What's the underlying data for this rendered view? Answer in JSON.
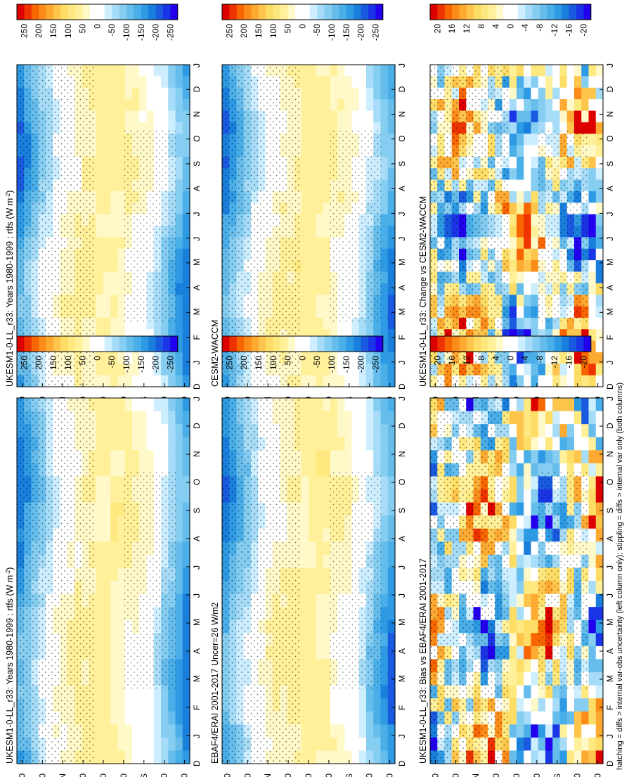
{
  "figure": {
    "footnote": "hatching = diffs > internal var-obs uncertainty (left column only); stippling = diffs > internal var only (both columns)"
  },
  "chart_data": [
    {
      "type": "heatmap",
      "title": "UKESM1-0-LL_r33: Years 1980-1999 : rtfs (W m",
      "title_sup": "-2",
      "title_suffix": ")",
      "months": [
        "D",
        "J",
        "F",
        "M",
        "A",
        "M",
        "J",
        "J",
        "A",
        "S",
        "O",
        "N",
        "D",
        "J"
      ],
      "lat_ticks": [
        "80",
        "60",
        "40N",
        "20",
        "0",
        "20",
        "40S",
        "60",
        "80"
      ],
      "colorbar": [
        "250",
        "200",
        "150",
        "100",
        "50",
        "0",
        "-50",
        "-100",
        "-150",
        "-200",
        "-250"
      ],
      "field": "absolute"
    },
    {
      "type": "heatmap",
      "title": "UKESM1-0-LL_r33: Years 1980-1999 : rtfs (W m",
      "title_sup": "-2",
      "title_suffix": ")",
      "months": [
        "D",
        "J",
        "F",
        "M",
        "A",
        "M",
        "J",
        "J",
        "A",
        "S",
        "O",
        "N",
        "D",
        "J"
      ],
      "lat_ticks": [
        "80",
        "60",
        "40N",
        "20",
        "0",
        "20",
        "40S",
        "60",
        "80"
      ],
      "colorbar": [
        "250",
        "200",
        "150",
        "100",
        "50",
        "0",
        "-50",
        "-100",
        "-150",
        "-200",
        "-250"
      ],
      "field": "absolute"
    },
    {
      "type": "heatmap",
      "title": "EBAF4/ERAI 2001-2017 Uncer=26 W/m2",
      "months": [
        "D",
        "J",
        "F",
        "M",
        "A",
        "M",
        "J",
        "J",
        "A",
        "S",
        "O",
        "N",
        "D",
        "J"
      ],
      "lat_ticks": [
        "80",
        "60",
        "40N",
        "20",
        "0",
        "20",
        "40S",
        "60",
        "80"
      ],
      "colorbar": [
        "250",
        "200",
        "150",
        "100",
        "50",
        "0",
        "-50",
        "-100",
        "-150",
        "-200",
        "-250"
      ],
      "field": "absolute"
    },
    {
      "type": "heatmap",
      "title": "CESM2-WACCM",
      "months": [
        "D",
        "J",
        "F",
        "M",
        "A",
        "M",
        "J",
        "J",
        "A",
        "S",
        "O",
        "N",
        "D",
        "J"
      ],
      "lat_ticks": [
        "80",
        "60",
        "40N",
        "20",
        "0",
        "20",
        "40S",
        "60",
        "80"
      ],
      "colorbar": [
        "250",
        "200",
        "150",
        "100",
        "50",
        "0",
        "-50",
        "-100",
        "-150",
        "-200",
        "-250"
      ],
      "field": "absolute"
    },
    {
      "type": "heatmap",
      "title": "UKESM1-0-LL_r33: Bias vs EBAF4/ERAI 2001-2017",
      "months": [
        "D",
        "J",
        "F",
        "M",
        "A",
        "M",
        "J",
        "J",
        "A",
        "S",
        "O",
        "N",
        "D",
        "J"
      ],
      "lat_ticks": [
        "80",
        "60",
        "40N",
        "20",
        "0",
        "20",
        "40S",
        "60",
        "80"
      ],
      "colorbar": [
        "20",
        "16",
        "12",
        "8",
        "4",
        "0",
        "-4",
        "-8",
        "-12",
        "-16",
        "-20"
      ],
      "field": "difference"
    },
    {
      "type": "heatmap",
      "title": "UKESM1-0-LL_r33: Change vs CESM2-WACCM",
      "months": [
        "D",
        "J",
        "F",
        "M",
        "A",
        "M",
        "J",
        "J",
        "A",
        "S",
        "O",
        "N",
        "D",
        "J"
      ],
      "lat_ticks": [
        "80",
        "60",
        "40N",
        "20",
        "0",
        "20",
        "40S",
        "60",
        "80"
      ],
      "colorbar": [
        "20",
        "16",
        "12",
        "8",
        "4",
        "0",
        "-4",
        "-8",
        "-12",
        "-16",
        "-20"
      ],
      "field": "difference"
    }
  ],
  "palette": [
    "#dd0000",
    "#ee3300",
    "#f76600",
    "#fb8c1a",
    "#fdaa33",
    "#fec54d",
    "#fedd66",
    "#fee880",
    "#fff099",
    "#fff8c8",
    "#ffffff",
    "#ffffff",
    "#cdeeff",
    "#a6dcf7",
    "#86cdf2",
    "#66bdec",
    "#4aaee8",
    "#2e9ae3",
    "#1a7fdc",
    "#1a5ae0",
    "#1a35e6",
    "#2200ee"
  ]
}
